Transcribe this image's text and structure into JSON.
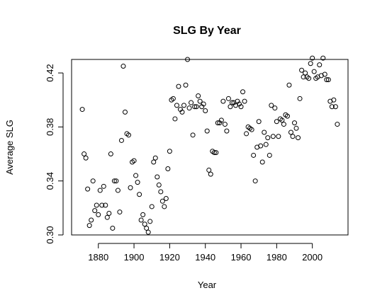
{
  "chart_data": {
    "type": "scatter",
    "title": "SLG By Year",
    "xlabel": "Year",
    "ylabel": "Average SLG",
    "xlim": [
      1865,
      2020
    ],
    "ylim": [
      0.3,
      0.43
    ],
    "xticks": [
      1880,
      1900,
      1920,
      1940,
      1960,
      1980,
      2000
    ],
    "yticks": [
      0.3,
      0.34,
      0.38,
      0.42
    ],
    "ytick_labels": [
      "0.30",
      "0.34",
      "0.38",
      "0.42"
    ],
    "grid": false,
    "legend": "none",
    "point_color": "#000000",
    "points": [
      [
        1871,
        0.393
      ],
      [
        1872,
        0.36
      ],
      [
        1873,
        0.357
      ],
      [
        1874,
        0.334
      ],
      [
        1875,
        0.307
      ],
      [
        1876,
        0.311
      ],
      [
        1877,
        0.34
      ],
      [
        1878,
        0.318
      ],
      [
        1879,
        0.322
      ],
      [
        1880,
        0.315
      ],
      [
        1881,
        0.333
      ],
      [
        1882,
        0.322
      ],
      [
        1883,
        0.336
      ],
      [
        1884,
        0.322
      ],
      [
        1885,
        0.313
      ],
      [
        1886,
        0.316
      ],
      [
        1887,
        0.36
      ],
      [
        1888,
        0.305
      ],
      [
        1889,
        0.34
      ],
      [
        1890,
        0.34
      ],
      [
        1891,
        0.333
      ],
      [
        1892,
        0.317
      ],
      [
        1893,
        0.37
      ],
      [
        1894,
        0.425
      ],
      [
        1895,
        0.391
      ],
      [
        1896,
        0.375
      ],
      [
        1897,
        0.374
      ],
      [
        1898,
        0.335
      ],
      [
        1899,
        0.354
      ],
      [
        1900,
        0.355
      ],
      [
        1901,
        0.344
      ],
      [
        1902,
        0.339
      ],
      [
        1903,
        0.33
      ],
      [
        1904,
        0.311
      ],
      [
        1905,
        0.315
      ],
      [
        1906,
        0.308
      ],
      [
        1907,
        0.305
      ],
      [
        1908,
        0.302
      ],
      [
        1909,
        0.31
      ],
      [
        1910,
        0.321
      ],
      [
        1911,
        0.354
      ],
      [
        1912,
        0.357
      ],
      [
        1913,
        0.343
      ],
      [
        1914,
        0.337
      ],
      [
        1915,
        0.332
      ],
      [
        1916,
        0.325
      ],
      [
        1917,
        0.321
      ],
      [
        1918,
        0.327
      ],
      [
        1919,
        0.349
      ],
      [
        1920,
        0.362
      ],
      [
        1921,
        0.4
      ],
      [
        1922,
        0.401
      ],
      [
        1923,
        0.386
      ],
      [
        1924,
        0.396
      ],
      [
        1925,
        0.41
      ],
      [
        1926,
        0.393
      ],
      [
        1927,
        0.391
      ],
      [
        1928,
        0.396
      ],
      [
        1929,
        0.411
      ],
      [
        1930,
        0.43
      ],
      [
        1931,
        0.394
      ],
      [
        1932,
        0.398
      ],
      [
        1933,
        0.374
      ],
      [
        1934,
        0.395
      ],
      [
        1935,
        0.395
      ],
      [
        1936,
        0.403
      ],
      [
        1937,
        0.399
      ],
      [
        1938,
        0.395
      ],
      [
        1939,
        0.397
      ],
      [
        1940,
        0.392
      ],
      [
        1941,
        0.377
      ],
      [
        1942,
        0.348
      ],
      [
        1943,
        0.345
      ],
      [
        1944,
        0.362
      ],
      [
        1945,
        0.361
      ],
      [
        1946,
        0.361
      ],
      [
        1947,
        0.383
      ],
      [
        1948,
        0.383
      ],
      [
        1949,
        0.385
      ],
      [
        1950,
        0.399
      ],
      [
        1951,
        0.382
      ],
      [
        1952,
        0.377
      ],
      [
        1953,
        0.401
      ],
      [
        1954,
        0.395
      ],
      [
        1955,
        0.398
      ],
      [
        1956,
        0.398
      ],
      [
        1957,
        0.396
      ],
      [
        1958,
        0.399
      ],
      [
        1959,
        0.397
      ],
      [
        1960,
        0.395
      ],
      [
        1961,
        0.406
      ],
      [
        1962,
        0.399
      ],
      [
        1963,
        0.375
      ],
      [
        1964,
        0.38
      ],
      [
        1965,
        0.379
      ],
      [
        1966,
        0.378
      ],
      [
        1967,
        0.359
      ],
      [
        1968,
        0.34
      ],
      [
        1969,
        0.365
      ],
      [
        1970,
        0.384
      ],
      [
        1971,
        0.366
      ],
      [
        1972,
        0.354
      ],
      [
        1973,
        0.376
      ],
      [
        1974,
        0.367
      ],
      [
        1975,
        0.372
      ],
      [
        1976,
        0.359
      ],
      [
        1977,
        0.396
      ],
      [
        1978,
        0.373
      ],
      [
        1979,
        0.394
      ],
      [
        1980,
        0.384
      ],
      [
        1981,
        0.373
      ],
      [
        1982,
        0.386
      ],
      [
        1983,
        0.385
      ],
      [
        1984,
        0.382
      ],
      [
        1985,
        0.389
      ],
      [
        1986,
        0.388
      ],
      [
        1987,
        0.411
      ],
      [
        1988,
        0.376
      ],
      [
        1989,
        0.373
      ],
      [
        1990,
        0.383
      ],
      [
        1991,
        0.379
      ],
      [
        1992,
        0.372
      ],
      [
        1993,
        0.401
      ],
      [
        1994,
        0.422
      ],
      [
        1995,
        0.417
      ],
      [
        1996,
        0.42
      ],
      [
        1997,
        0.417
      ],
      [
        1998,
        0.416
      ],
      [
        1999,
        0.427
      ],
      [
        2000,
        0.431
      ],
      [
        2001,
        0.421
      ],
      [
        2002,
        0.416
      ],
      [
        2003,
        0.417
      ],
      [
        2004,
        0.426
      ],
      [
        2005,
        0.418
      ],
      [
        2006,
        0.431
      ],
      [
        2007,
        0.419
      ],
      [
        2008,
        0.415
      ],
      [
        2009,
        0.415
      ],
      [
        2010,
        0.399
      ],
      [
        2011,
        0.395
      ],
      [
        2012,
        0.4
      ],
      [
        2013,
        0.395
      ],
      [
        2014,
        0.382
      ]
    ]
  }
}
